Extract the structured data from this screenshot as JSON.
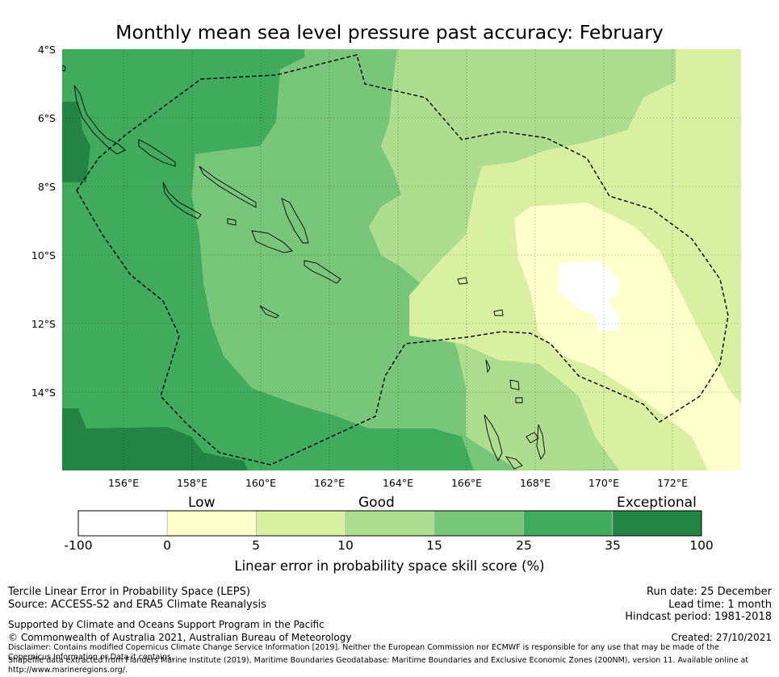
{
  "title": "Monthly mean sea level pressure past accuracy: February",
  "map": {
    "lat_labels": [
      "4°S",
      "6°S",
      "8°S",
      "10°S",
      "12°S",
      "14°S"
    ],
    "lon_labels": [
      "156°E",
      "158°E",
      "160°E",
      "162°E",
      "164°E",
      "166°E",
      "168°E",
      "170°E",
      "172°E"
    ],
    "lat_range": [
      -4,
      -16.3
    ],
    "lon_range": [
      154.2,
      174.0
    ]
  },
  "colorbar": {
    "categories": [
      "Low",
      "Good",
      "Exceptional"
    ],
    "ticks": [
      "-100",
      "0",
      "5",
      "10",
      "15",
      "25",
      "35",
      "100"
    ],
    "colors": [
      "#ffffff",
      "#ffffcc",
      "#d9f0a3",
      "#addd8e",
      "#78c679",
      "#41ab5d",
      "#238443"
    ],
    "label": "Linear error in probability space skill score (%)"
  },
  "footer": {
    "method": "Tercile Linear Error in Probability Space (LEPS)",
    "source": "Source: ACCESS-S2 and ERA5 Climate Reanalysis",
    "run_date": "Run date: 25 December",
    "lead_time": "Lead time: 1 month",
    "hindcast": "Hindcast period: 1981-2018",
    "support": "Supported by Climate and Oceans Support Program in the Pacific",
    "copyright": "© Commonwealth of Australia 2021, Australian Bureau of Meteorology",
    "created": "Created: 27/10/2021",
    "disclaimer": "Disclaimer: Contains modified Copernicus Climate Change Service Information [2019]. Neither the European Commission nor ECMWF is responsible for any use that may be made of the Copernicus Information or Data it contains.",
    "shapefile": "Shapefile data extracted from Flanders Marine Institute (2019), Maritime Boundaries Geodatabase: Maritime Boundaries and Exclusive Economic Zones (200NM), version 11. Available online at http://www.marineregions.org/."
  }
}
